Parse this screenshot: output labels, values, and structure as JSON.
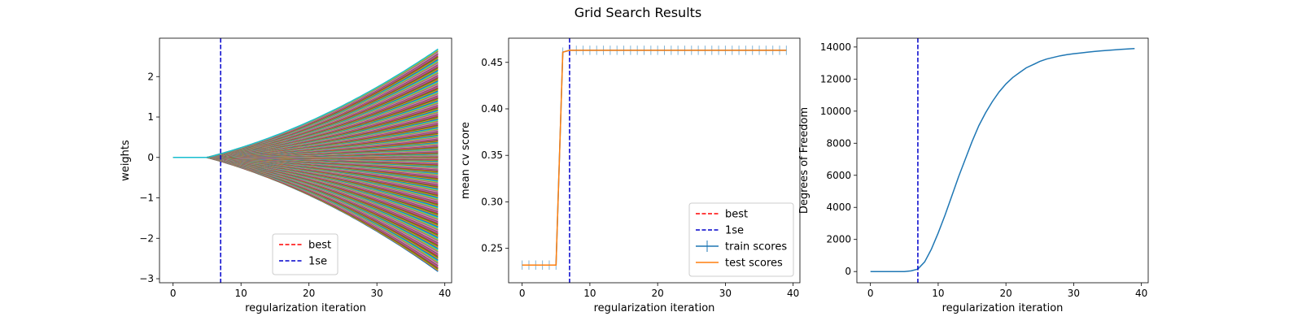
{
  "figure": {
    "title": "Grid Search Results"
  },
  "colors": {
    "best": "#ff0000",
    "onese": "#0000cc",
    "train": "#1f77b4",
    "test": "#ff7f0e",
    "palette": [
      "#1f77b4",
      "#ff7f0e",
      "#2ca02c",
      "#d62728",
      "#9467bd",
      "#8c564b",
      "#e377c2",
      "#7f7f7f",
      "#bcbd22",
      "#17becf"
    ]
  },
  "chart_data": [
    {
      "type": "line",
      "xlabel": "regularization iteration",
      "ylabel": "weights",
      "xlim": [
        -2,
        41
      ],
      "ylim": [
        -3.1,
        2.95
      ],
      "xticks": [
        0,
        10,
        20,
        30,
        40
      ],
      "yticks": [
        -3,
        -2,
        -1,
        0,
        1,
        2
      ],
      "vlines": [
        {
          "name": "1se",
          "x": 7,
          "style": "dashed"
        }
      ],
      "legend": {
        "position": "lower-center",
        "entries": [
          "best",
          "1se"
        ]
      },
      "series_summary": {
        "x_range": [
          0,
          39
        ],
        "count": "many (individual weight paths, unlabeled)",
        "flat_until_x": 5,
        "final_max": 2.68,
        "final_min": -2.82
      }
    },
    {
      "type": "line",
      "xlabel": "regularization iteration",
      "ylabel": "mean cv score",
      "xlim": [
        -2,
        41
      ],
      "ylim": [
        0.213,
        0.476
      ],
      "xticks": [
        0,
        10,
        20,
        30,
        40
      ],
      "yticks": [
        0.25,
        0.3,
        0.35,
        0.4,
        0.45
      ],
      "vlines": [
        {
          "name": "1se",
          "x": 7,
          "style": "dashed"
        }
      ],
      "legend": {
        "position": "lower-right",
        "entries": [
          "best",
          "1se",
          "train scores",
          "test scores"
        ]
      },
      "series": [
        {
          "name": "train scores",
          "x": [
            0,
            1,
            2,
            3,
            4,
            5,
            6,
            7,
            8,
            9,
            10,
            11,
            12,
            13,
            14,
            15,
            16,
            17,
            18,
            19,
            20,
            21,
            22,
            23,
            24,
            25,
            26,
            27,
            28,
            29,
            30,
            31,
            32,
            33,
            34,
            35,
            36,
            37,
            38,
            39
          ],
          "values": [
            0.232,
            0.232,
            0.232,
            0.232,
            0.232,
            0.232,
            0.461,
            0.463,
            0.463,
            0.463,
            0.463,
            0.463,
            0.463,
            0.463,
            0.463,
            0.463,
            0.463,
            0.463,
            0.463,
            0.463,
            0.463,
            0.463,
            0.463,
            0.463,
            0.463,
            0.463,
            0.463,
            0.463,
            0.463,
            0.463,
            0.463,
            0.463,
            0.463,
            0.463,
            0.463,
            0.463,
            0.463,
            0.463,
            0.463,
            0.463
          ],
          "error": 0.005
        },
        {
          "name": "test scores",
          "x": [
            0,
            1,
            2,
            3,
            4,
            5,
            6,
            7,
            8,
            9,
            10,
            11,
            12,
            13,
            14,
            15,
            16,
            17,
            18,
            19,
            20,
            21,
            22,
            23,
            24,
            25,
            26,
            27,
            28,
            29,
            30,
            31,
            32,
            33,
            34,
            35,
            36,
            37,
            38,
            39
          ],
          "values": [
            0.232,
            0.232,
            0.232,
            0.232,
            0.232,
            0.232,
            0.461,
            0.463,
            0.463,
            0.463,
            0.463,
            0.463,
            0.463,
            0.463,
            0.463,
            0.463,
            0.463,
            0.463,
            0.463,
            0.463,
            0.463,
            0.463,
            0.463,
            0.463,
            0.463,
            0.463,
            0.463,
            0.463,
            0.463,
            0.463,
            0.463,
            0.463,
            0.463,
            0.463,
            0.463,
            0.463,
            0.463,
            0.463,
            0.463,
            0.463
          ]
        }
      ]
    },
    {
      "type": "line",
      "xlabel": "regularization iteration",
      "ylabel": "Degrees of Freedom",
      "xlim": [
        -2,
        41
      ],
      "ylim": [
        -700,
        14550
      ],
      "xticks": [
        0,
        10,
        20,
        30,
        40
      ],
      "yticks": [
        0,
        2000,
        4000,
        6000,
        8000,
        10000,
        12000,
        14000
      ],
      "vlines": [
        {
          "name": "1se",
          "x": 7,
          "style": "dashed"
        }
      ],
      "series": [
        {
          "name": "",
          "x": [
            0,
            1,
            2,
            3,
            4,
            5,
            6,
            7,
            8,
            9,
            10,
            11,
            12,
            13,
            14,
            15,
            16,
            17,
            18,
            19,
            20,
            21,
            22,
            23,
            24,
            25,
            26,
            27,
            28,
            29,
            30,
            31,
            32,
            33,
            34,
            35,
            36,
            37,
            38,
            39
          ],
          "values": [
            0,
            0,
            0,
            0,
            0,
            0,
            40,
            150,
            600,
            1400,
            2400,
            3500,
            4700,
            5900,
            7000,
            8100,
            9100,
            9900,
            10600,
            11200,
            11700,
            12100,
            12400,
            12700,
            12900,
            13100,
            13250,
            13350,
            13450,
            13520,
            13580,
            13630,
            13680,
            13720,
            13760,
            13790,
            13820,
            13850,
            13880,
            13900
          ]
        }
      ]
    }
  ]
}
